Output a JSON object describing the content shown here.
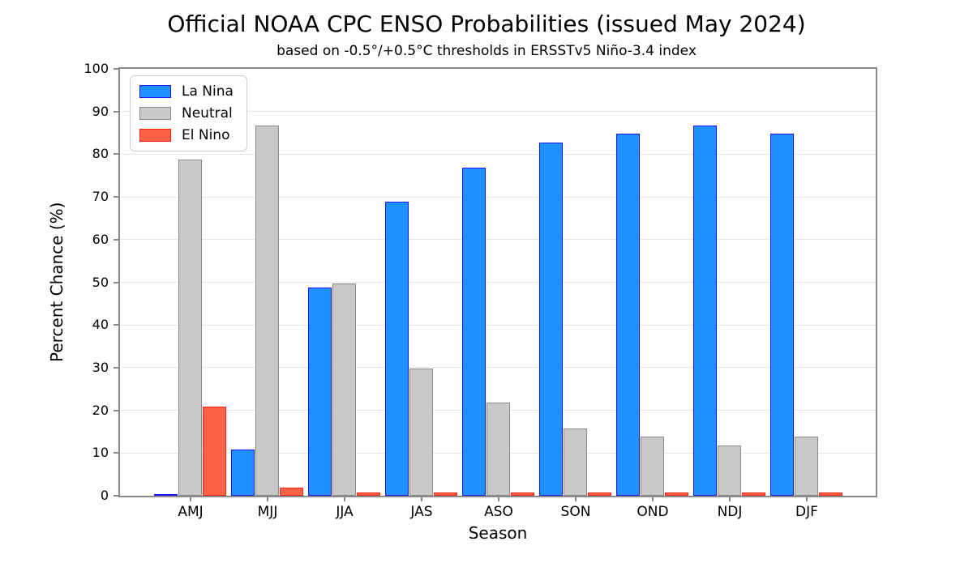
{
  "title": "Official NOAA CPC ENSO Probabilities (issued May 2024)",
  "subtitle": "based on -0.5°/+0.5°C thresholds in ERSSTv5 Niño-3.4 index",
  "chart_data": {
    "type": "bar",
    "categories": [
      "AMJ",
      "MJJ",
      "JJA",
      "JAS",
      "ASO",
      "SON",
      "OND",
      "NDJ",
      "DJF"
    ],
    "series": [
      {
        "name": "La Nina",
        "fill": "#1e90ff",
        "edge": "#1a12f5",
        "values": [
          0,
          11,
          49,
          69,
          77,
          83,
          85,
          87,
          85
        ]
      },
      {
        "name": "Neutral",
        "fill": "#c9c9c9",
        "edge": "#8a8a8a",
        "values": [
          79,
          87,
          50,
          30,
          22,
          16,
          14,
          12,
          14
        ]
      },
      {
        "name": "El Nino",
        "fill": "#ff6347",
        "edge": "#fb2018",
        "values": [
          21,
          2,
          1,
          1,
          1,
          1,
          1,
          1,
          1
        ]
      }
    ],
    "xlabel": "Season",
    "ylabel": "Percent Chance (%)",
    "ylim": [
      0,
      100
    ],
    "yticks": [
      0,
      10,
      20,
      30,
      40,
      50,
      60,
      70,
      80,
      90,
      100
    ],
    "grid": "horizontal",
    "legend_position": "upper-left",
    "axis_color": "#8a8a8a",
    "grid_color": "#e8e8e8"
  }
}
